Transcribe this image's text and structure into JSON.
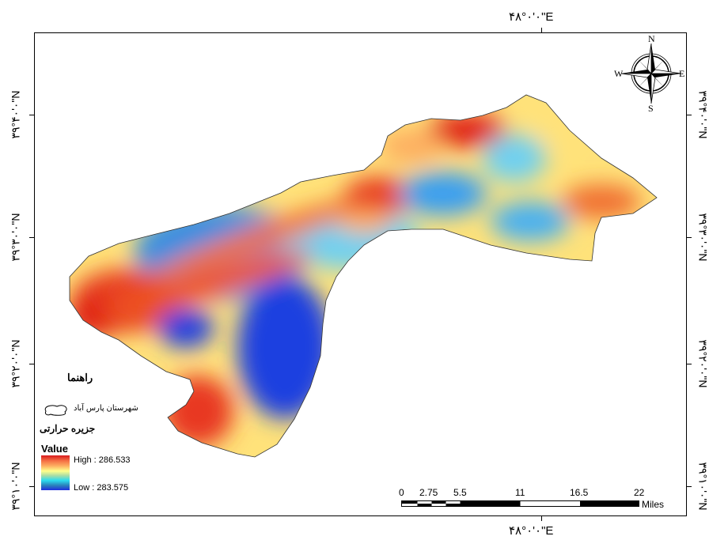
{
  "coordinates": {
    "top": "۴۸°۰'۰\"E",
    "bottom": "۴۸°۰'۰\"E",
    "left": [
      "۳۹°۴۰'۰\"N",
      "۳۹°۳۰'۰\"N",
      "۳۹°۲۰'۰\"N",
      "۳۹°۱۰'۰\"N"
    ],
    "right": [
      "۳۹°۴۰'۰\"N",
      "۳۹°۳۰'۰\"N",
      "۳۹°۲۰'۰\"N",
      "۳۹°۱۰'۰\"N"
    ]
  },
  "north_arrow": {
    "n": "N",
    "s": "S",
    "e": "E",
    "w": "W"
  },
  "legend": {
    "title": "راهنما",
    "boundary_label": "شهرستان پارس آباد",
    "heat_island_label": "جزیره حرارتی",
    "value_title": "Value",
    "high": "High : 286.533",
    "low": "Low : 283.575",
    "colors": [
      "#d7191c",
      "#fdae61",
      "#ffff8c",
      "#abdda4",
      "#2bdcf0",
      "#2b83ba",
      "#1f2de0"
    ]
  },
  "scale_bar": {
    "labels": [
      "0",
      "2.75",
      "5.5",
      "11",
      "16.5",
      "22"
    ],
    "unit": "Miles"
  }
}
